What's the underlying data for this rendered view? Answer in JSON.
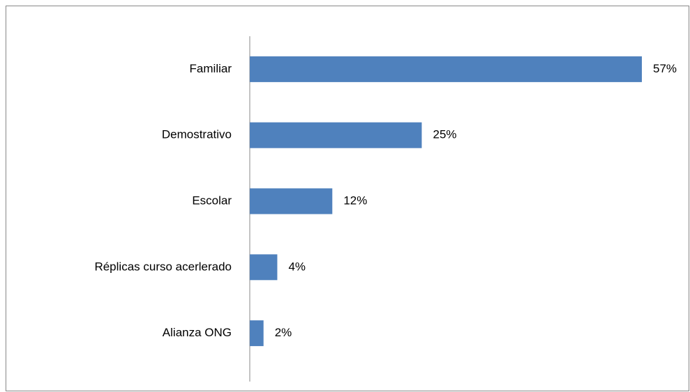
{
  "chart_data": {
    "type": "bar",
    "orientation": "horizontal",
    "categories": [
      "Familiar",
      "Demostrativo",
      "Escolar",
      "Réplicas curso acerlerado",
      "Alianza ONG"
    ],
    "values": [
      57,
      25,
      12,
      4,
      2
    ],
    "value_labels": [
      "57%",
      "25%",
      "12%",
      "4%",
      "2%"
    ],
    "color": "#4f81bd"
  }
}
